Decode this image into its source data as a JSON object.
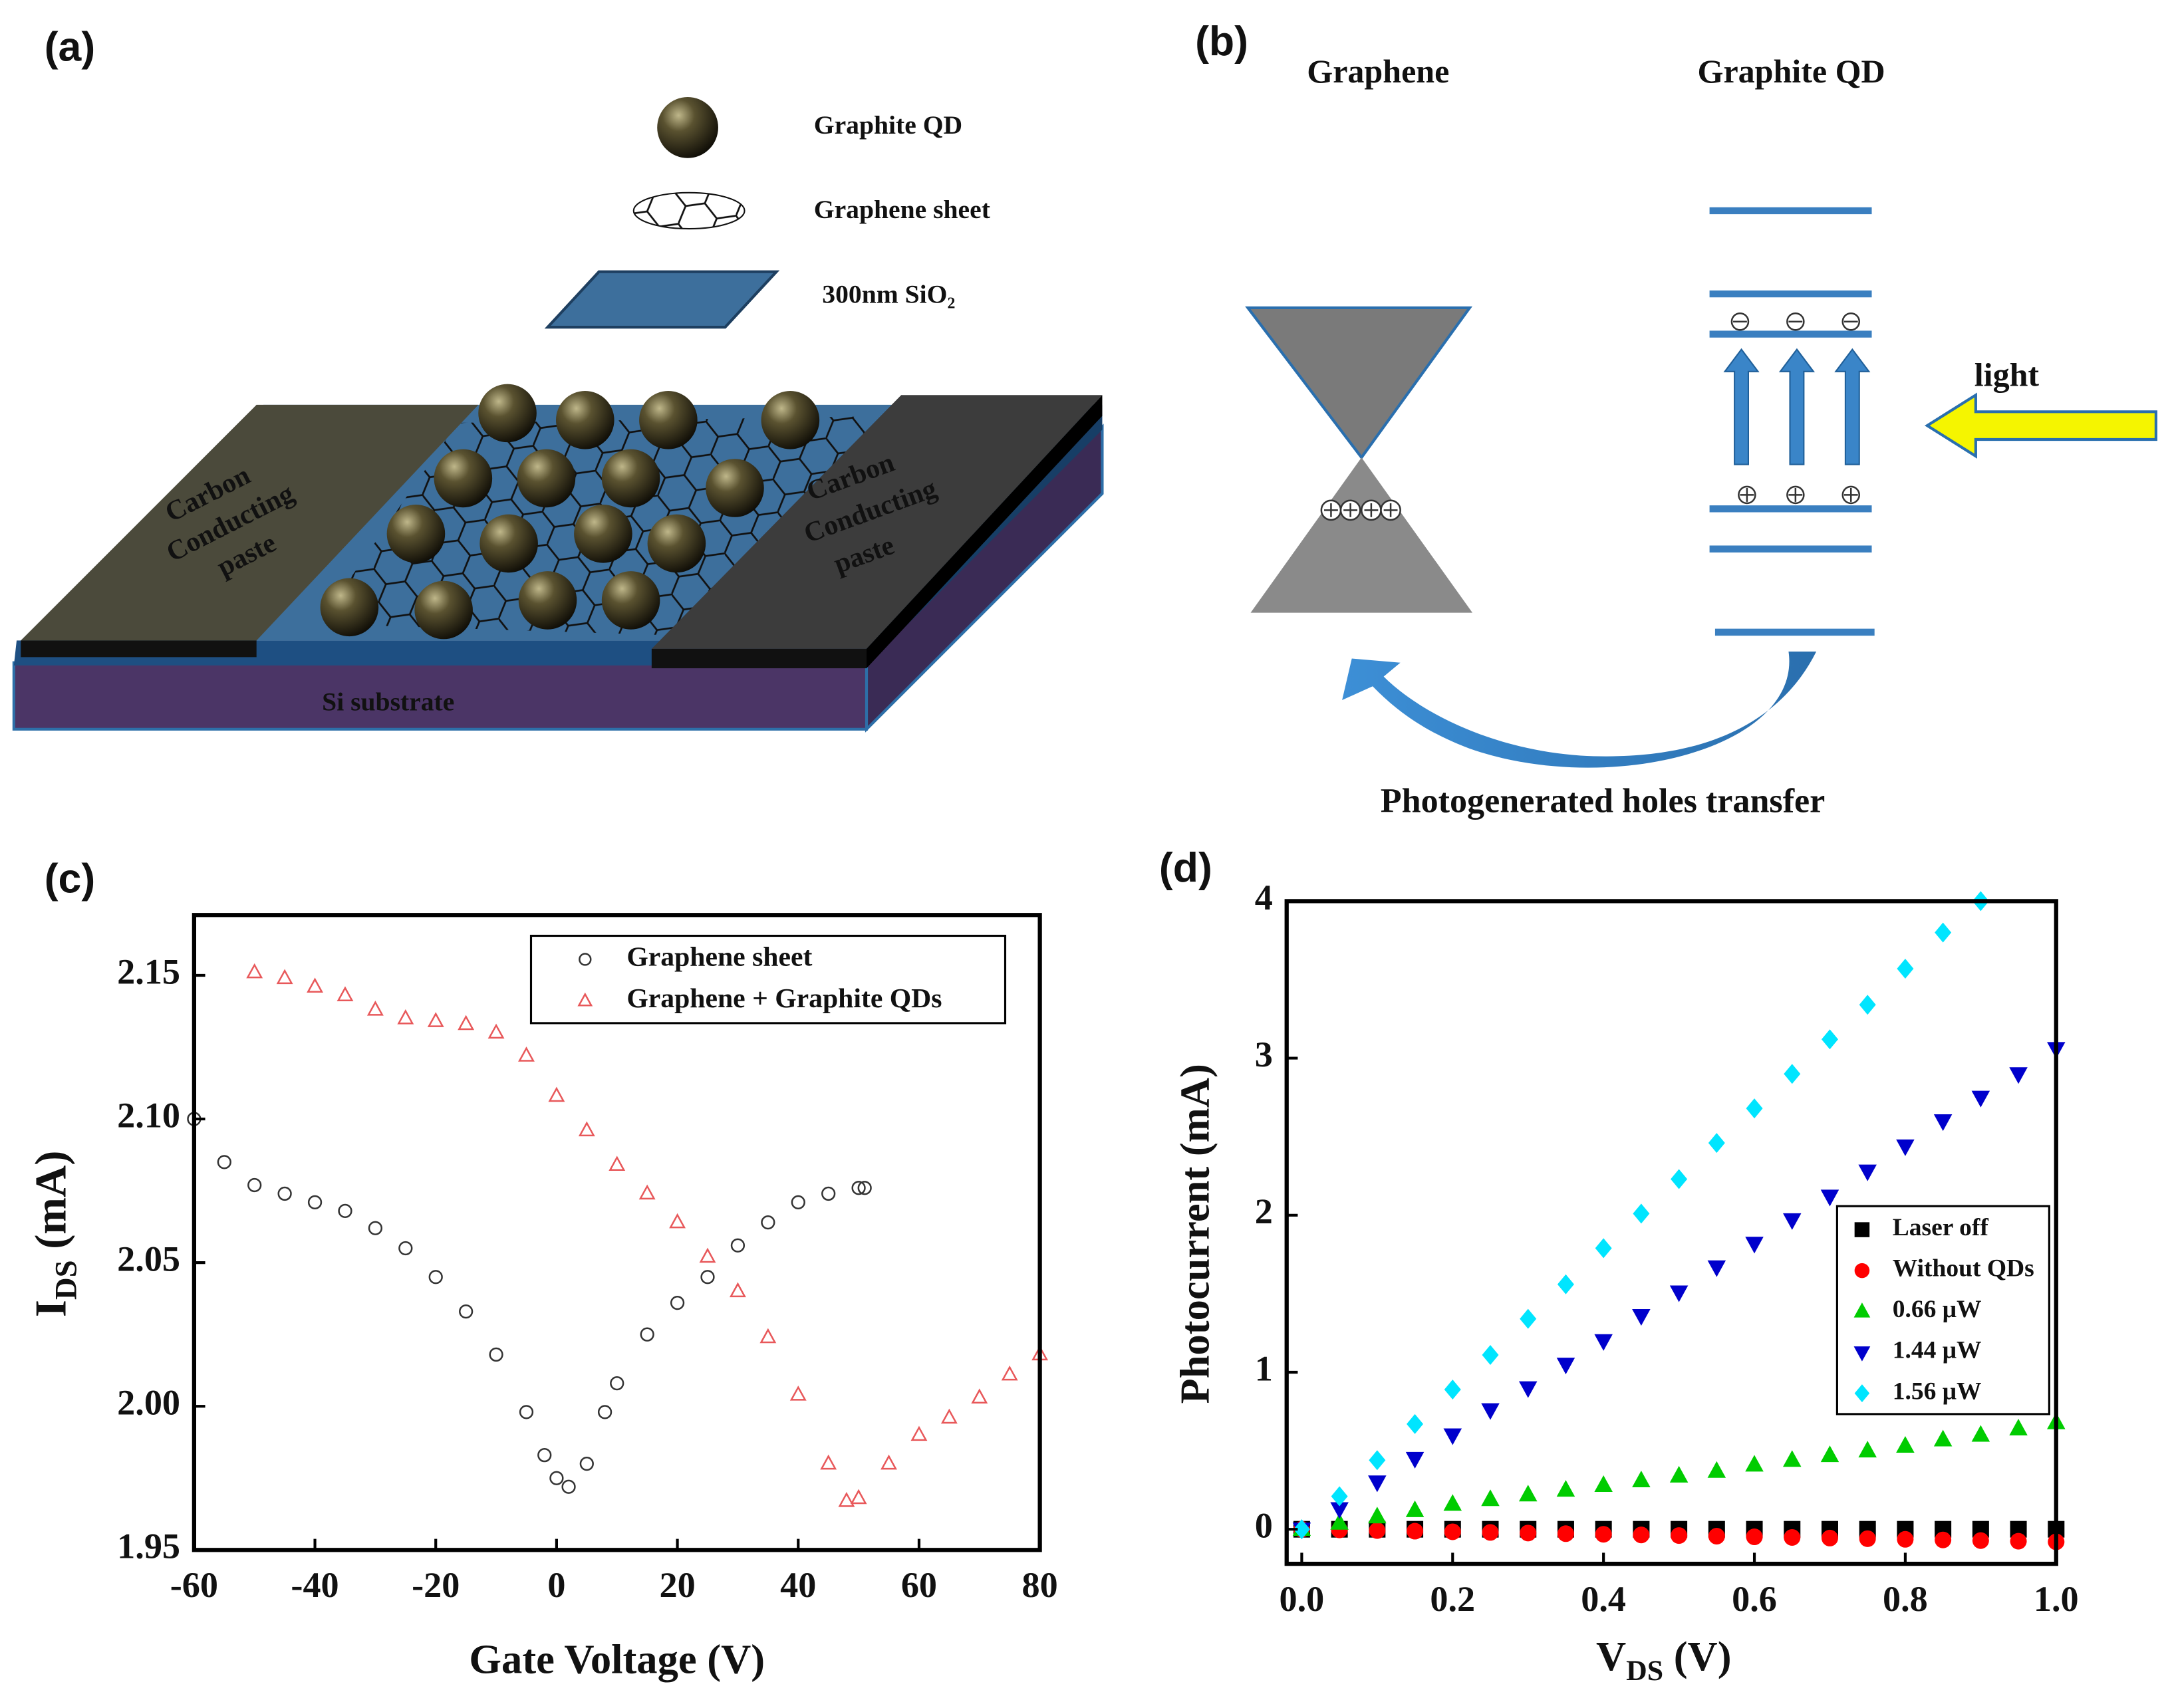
{
  "panel_a": {
    "label": "(a)",
    "legend": [
      "Graphite QD",
      "Graphene sheet",
      "300nm SiO₂"
    ],
    "electrode_left": [
      "Carbon",
      "Conducting",
      "paste"
    ],
    "electrode_right": [
      "Carbon",
      "Conducting",
      "paste"
    ],
    "substrate": "Si substrate"
  },
  "panel_b": {
    "label": "(b)",
    "graphene": "Graphene",
    "graphite_qd": "Graphite QD",
    "light": "light",
    "transfer": "Photogenerated holes transfer"
  },
  "chart_data": [
    {
      "type": "scatter",
      "label": "(c)",
      "xlabel": "Gate Voltage (V)",
      "ylabel_parts": [
        "I",
        "DS",
        " (mA)"
      ],
      "xlim": [
        -60,
        80
      ],
      "xticks": [
        -60,
        -40,
        -20,
        0,
        20,
        40,
        60,
        80
      ],
      "ylim": [
        1.95,
        2.171
      ],
      "yticks": [
        1.95,
        {
          "value": 2,
          "label": "2.00"
        },
        2.05,
        {
          "value": 2.1,
          "label": "2.10"
        },
        2.15
      ],
      "markers_open": true,
      "legend": "upper right",
      "series": [
        {
          "name": "Graphene sheet",
          "color": "#333333",
          "marker": "circle",
          "x": [
            -60,
            -55,
            -50,
            -45,
            -40,
            -35,
            -30,
            -25,
            -20,
            -15,
            -10,
            -5,
            -2,
            0,
            2,
            5,
            8,
            10,
            15,
            20,
            25,
            30,
            35,
            40,
            45,
            50,
            51
          ],
          "values": [
            2.1,
            2.085,
            2.077,
            2.074,
            2.071,
            2.068,
            2.062,
            2.055,
            2.045,
            2.033,
            2.018,
            1.998,
            1.983,
            1.975,
            1.972,
            1.98,
            1.998,
            2.008,
            2.025,
            2.036,
            2.045,
            2.056,
            2.064,
            2.071,
            2.074,
            2.076,
            2.076
          ]
        },
        {
          "name": "Graphene + Graphite QDs",
          "color": "#e8585a",
          "marker": "triangle-up",
          "x": [
            -50,
            -45,
            -40,
            -35,
            -30,
            -25,
            -20,
            -15,
            -10,
            -5,
            0,
            5,
            10,
            15,
            20,
            25,
            30,
            35,
            40,
            45,
            48,
            50,
            55,
            60,
            65,
            70,
            75,
            80
          ],
          "values": [
            2.151,
            2.149,
            2.146,
            2.143,
            2.138,
            2.135,
            2.134,
            2.133,
            2.13,
            2.122,
            2.108,
            2.096,
            2.084,
            2.074,
            2.064,
            2.052,
            2.04,
            2.024,
            2.004,
            1.98,
            1.967,
            1.968,
            1.98,
            1.99,
            1.996,
            2.003,
            2.011,
            2.018
          ]
        }
      ]
    },
    {
      "type": "scatter",
      "label": "(d)",
      "xlabel_parts": [
        "V",
        "DS",
        "  (V)"
      ],
      "ylabel": "Photocurrent (mA)",
      "xlim": [
        -0.02,
        1
      ],
      "xticks": [
        {
          "value": 0,
          "label": "0.0"
        },
        0.2,
        0.4,
        0.6,
        0.8,
        {
          "value": 1,
          "label": "1.0"
        }
      ],
      "ylim": [
        -0.22,
        4
      ],
      "yticks": [
        0,
        1,
        2,
        3,
        4
      ],
      "markers_open": false,
      "legend": "lower right",
      "x": [
        0,
        0.05,
        0.1,
        0.15,
        0.2,
        0.25,
        0.3,
        0.35,
        0.4,
        0.45,
        0.5,
        0.55,
        0.6,
        0.65,
        0.7,
        0.75,
        0.8,
        0.85,
        0.9,
        0.95,
        1
      ],
      "series": [
        {
          "name": "Laser off",
          "color": "#000000",
          "marker": "square",
          "values": [
            0,
            0,
            0,
            0,
            0,
            0,
            0,
            0,
            0,
            0,
            0,
            0,
            0,
            0,
            0,
            0,
            0,
            0,
            0,
            0,
            0
          ]
        },
        {
          "name": "Without QDs",
          "color": "#ff0000",
          "marker": "circle",
          "values": [
            0,
            -0.004,
            -0.008,
            -0.012,
            -0.016,
            -0.02,
            -0.024,
            -0.028,
            -0.032,
            -0.036,
            -0.04,
            -0.044,
            -0.048,
            -0.052,
            -0.056,
            -0.06,
            -0.064,
            -0.068,
            -0.072,
            -0.076,
            -0.08
          ]
        },
        {
          "name": "0.66 μW",
          "color": "#00cc00",
          "marker": "triangle-up",
          "values": [
            0,
            0.04,
            0.08,
            0.12,
            0.16,
            0.19,
            0.22,
            0.25,
            0.28,
            0.31,
            0.34,
            0.37,
            0.41,
            0.44,
            0.47,
            0.5,
            0.53,
            0.57,
            0.6,
            0.64,
            0.68
          ]
        },
        {
          "name": "1.44 μW",
          "color": "#0000cc",
          "marker": "triangle-down",
          "values": [
            0,
            0.13,
            0.3,
            0.45,
            0.6,
            0.76,
            0.9,
            1.05,
            1.2,
            1.36,
            1.51,
            1.67,
            1.82,
            1.97,
            2.12,
            2.28,
            2.44,
            2.6,
            2.75,
            2.9,
            3.06
          ]
        },
        {
          "name": "1.56 μW",
          "color": "#00e5ff",
          "marker": "diamond",
          "values": [
            0,
            0.21,
            0.44,
            0.67,
            0.89,
            1.11,
            1.34,
            1.56,
            1.79,
            2.01,
            2.23,
            2.46,
            2.68,
            2.9,
            3.12,
            3.34,
            3.57,
            3.8,
            4,
            null,
            null
          ]
        }
      ]
    }
  ]
}
